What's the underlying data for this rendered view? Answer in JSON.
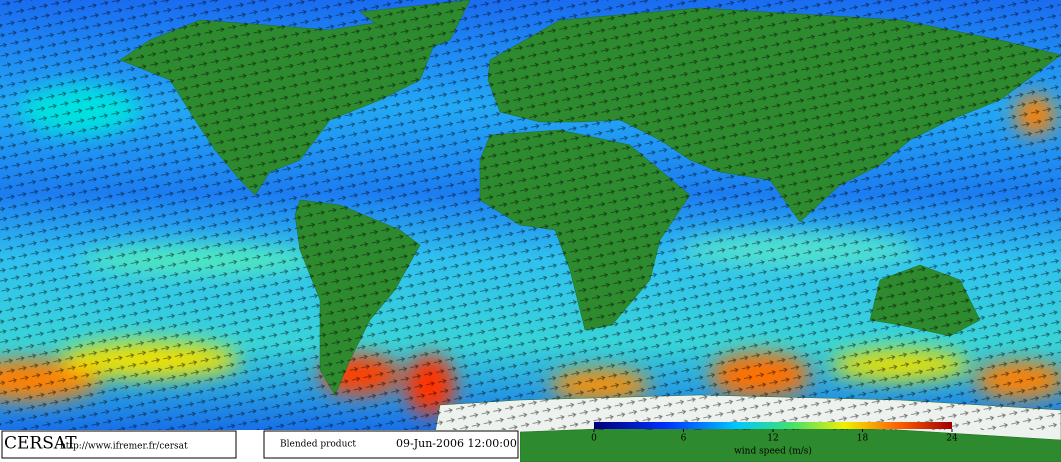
{
  "logo": "CERSAT",
  "url": "http://www.ifremer.fr/cersat",
  "product": "Blended product",
  "timestamp": "09-Jun-2006 12:00:00",
  "colorbar": {
    "label": "wind speed (m/s)",
    "lim": [
      0,
      24
    ],
    "ticks": [
      0,
      6,
      12,
      18,
      24
    ]
  }
}
